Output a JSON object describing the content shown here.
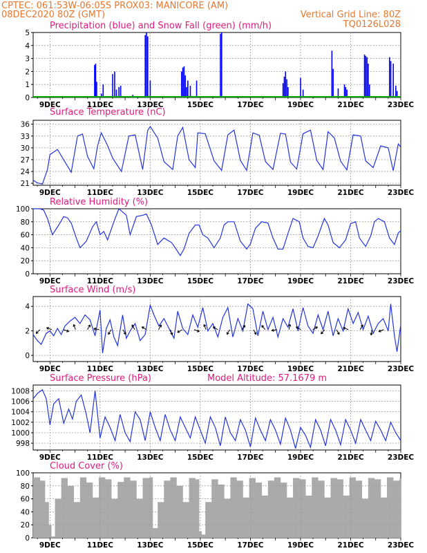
{
  "header": {
    "line1_left": "CPTEC:    061:53W-06:05S    PROX03: MANICORE (AM)",
    "line2_left": "08DEC2020 80Z (GMT)",
    "line2_right": "Vertical Grid Line: 80Z",
    "line3_right": "TQ0126L028"
  },
  "colors": {
    "header": "#e8772e",
    "title": "#e0197d",
    "precip": "#0000ff",
    "snow": "#00aa00",
    "line": "#2233dd",
    "cloud": "#aaaaaa",
    "grid": "#9a9a9a"
  },
  "chart_data": [
    {
      "type": "bar",
      "title": "Precipitation (blue) and Snow Fall (green) (mm/h)",
      "x_tick_labels": [
        "9DEC",
        "11DEC",
        "13DEC",
        "15DEC",
        "17DEC",
        "19DEC",
        "21DEC",
        "23DEC"
      ],
      "x_range_days": [
        8.33,
        23.0
      ],
      "yticks": [
        0,
        1,
        2,
        3,
        4,
        5
      ],
      "ylim": [
        0,
        5
      ],
      "grid": true,
      "series": [
        {
          "name": "Precipitation",
          "x": [
            10.78,
            10.82,
            10.86,
            11.05,
            11.12,
            11.5,
            11.58,
            11.65,
            11.75,
            11.82,
            12.3,
            12.8,
            12.85,
            12.9,
            13.0,
            14.25,
            14.3,
            14.35,
            14.4,
            14.45,
            14.5,
            14.6,
            14.85,
            15.8,
            15.85,
            18.3,
            18.35,
            18.4,
            18.45,
            18.5,
            19.0,
            19.1,
            20.25,
            20.3,
            20.5,
            20.75,
            20.8,
            20.85,
            21.55,
            21.6,
            21.65,
            21.7,
            21.75,
            22.55,
            22.6,
            22.7,
            22.8,
            22.85
          ],
          "values": [
            2.5,
            2.6,
            1.2,
            0.3,
            1.0,
            1.8,
            2.0,
            0.6,
            0.8,
            0.9,
            0.2,
            4.8,
            5.0,
            4.7,
            1.3,
            2.0,
            2.3,
            2.4,
            1.7,
            0.8,
            1.3,
            0.9,
            1.3,
            4.9,
            5.0,
            1.1,
            1.6,
            2.0,
            1.4,
            0.8,
            1.5,
            0.6,
            3.6,
            2.2,
            0.7,
            1.0,
            0.8,
            0.6,
            3.3,
            3.2,
            3.1,
            2.6,
            1.0,
            3.1,
            2.8,
            2.6,
            0.9,
            0.5
          ]
        },
        {
          "name": "Snow Fall",
          "x": [
            8.33,
            23.0
          ],
          "values": [
            0,
            0
          ]
        }
      ]
    },
    {
      "type": "line",
      "title": "Surface Temperature (nC)",
      "x_tick_labels": [
        "9DEC",
        "11DEC",
        "13DEC",
        "15DEC",
        "17DEC",
        "19DEC",
        "21DEC",
        "23DEC"
      ],
      "yticks": [
        21,
        24,
        27,
        30,
        33,
        36
      ],
      "ylim": [
        20.5,
        37.0
      ],
      "grid": true,
      "x": [
        8.33,
        8.5,
        8.7,
        8.9,
        9.0,
        9.3,
        9.6,
        9.85,
        10.1,
        10.3,
        10.5,
        10.75,
        10.9,
        11.05,
        11.3,
        11.5,
        11.85,
        12.15,
        12.4,
        12.7,
        12.9,
        13.0,
        13.3,
        13.55,
        13.9,
        14.1,
        14.3,
        14.55,
        14.8,
        14.9,
        15.2,
        15.55,
        15.85,
        16.1,
        16.35,
        16.6,
        16.85,
        17.1,
        17.35,
        17.6,
        17.9,
        18.2,
        18.4,
        18.6,
        18.85,
        19.1,
        19.4,
        19.65,
        19.9,
        20.1,
        20.35,
        20.6,
        20.85,
        21.1,
        21.4,
        21.6,
        21.9,
        22.2,
        22.5,
        22.7,
        22.9,
        23.0
      ],
      "values": [
        21.8,
        21.1,
        20.8,
        24.5,
        28.3,
        29.6,
        26.4,
        23.8,
        33.0,
        33.5,
        27.8,
        24.7,
        30.5,
        33.8,
        30.6,
        27.4,
        24.0,
        33.0,
        33.3,
        24.5,
        34.4,
        35.4,
        32.5,
        26.5,
        24.5,
        33.0,
        35.2,
        27.0,
        25.0,
        33.8,
        33.6,
        26.7,
        24.3,
        33.3,
        34.5,
        26.8,
        24.3,
        33.8,
        33.2,
        26.5,
        24.5,
        33.7,
        33.5,
        26.4,
        24.6,
        33.6,
        34.5,
        26.8,
        24.5,
        34.1,
        32.5,
        26.6,
        24.4,
        33.3,
        33.0,
        26.7,
        25.0,
        30.5,
        30.0,
        24.2,
        31.0,
        30.2
      ]
    },
    {
      "type": "line",
      "title": "Relative Humidity (%)",
      "x_tick_labels": [
        "9DEC",
        "11DEC",
        "13DEC",
        "15DEC",
        "17DEC",
        "19DEC",
        "21DEC",
        "23DEC"
      ],
      "yticks": [
        0,
        20,
        40,
        60,
        80,
        100
      ],
      "ylim": [
        0,
        100
      ],
      "grid": true,
      "x": [
        8.33,
        8.6,
        8.75,
        8.9,
        9.1,
        9.35,
        9.55,
        9.7,
        9.85,
        10.05,
        10.2,
        10.45,
        10.7,
        10.85,
        11.0,
        11.15,
        11.3,
        11.55,
        11.75,
        11.9,
        12.05,
        12.2,
        12.45,
        12.7,
        12.85,
        13.05,
        13.3,
        13.55,
        13.85,
        14.0,
        14.2,
        14.35,
        14.55,
        14.8,
        14.95,
        15.1,
        15.3,
        15.55,
        15.8,
        15.95,
        16.1,
        16.35,
        16.6,
        16.85,
        17.0,
        17.2,
        17.45,
        17.7,
        17.9,
        18.1,
        18.3,
        18.5,
        18.7,
        18.95,
        19.1,
        19.3,
        19.5,
        19.7,
        19.95,
        20.1,
        20.3,
        20.55,
        20.8,
        21.0,
        21.2,
        21.35,
        21.6,
        21.8,
        21.95,
        22.1,
        22.35,
        22.55,
        22.75,
        22.9,
        23.0
      ],
      "values": [
        100,
        100,
        98,
        85,
        60,
        75,
        88,
        86,
        78,
        55,
        40,
        50,
        72,
        80,
        60,
        65,
        52,
        80,
        100,
        95,
        90,
        60,
        88,
        90,
        92,
        75,
        45,
        55,
        48,
        40,
        28,
        38,
        62,
        75,
        75,
        60,
        55,
        40,
        55,
        75,
        80,
        80,
        50,
        38,
        46,
        70,
        80,
        78,
        55,
        38,
        38,
        62,
        85,
        80,
        55,
        42,
        40,
        58,
        85,
        75,
        48,
        40,
        52,
        77,
        80,
        55,
        42,
        58,
        80,
        85,
        80,
        55,
        45,
        63,
        66
      ]
    },
    {
      "type": "line",
      "title": "Surface Wind (m/s)",
      "x_tick_labels": [
        "9DEC",
        "11DEC",
        "13DEC",
        "15DEC",
        "17DEC",
        "19DEC",
        "21DEC",
        "23DEC"
      ],
      "yticks": [
        0,
        2,
        4
      ],
      "ylim": [
        -0.5,
        4.8
      ],
      "grid": true,
      "x": [
        8.33,
        8.5,
        8.65,
        8.85,
        9.0,
        9.15,
        9.3,
        9.45,
        9.6,
        9.8,
        10.0,
        10.2,
        10.4,
        10.6,
        10.8,
        11.0,
        11.1,
        11.25,
        11.4,
        11.55,
        11.7,
        11.9,
        12.05,
        12.2,
        12.4,
        12.6,
        12.8,
        13.0,
        13.15,
        13.35,
        13.55,
        13.75,
        13.95,
        14.1,
        14.3,
        14.5,
        14.7,
        14.9,
        15.1,
        15.3,
        15.5,
        15.7,
        15.9,
        16.1,
        16.3,
        16.5,
        16.7,
        16.9,
        17.1,
        17.3,
        17.5,
        17.7,
        17.9,
        18.1,
        18.3,
        18.5,
        18.7,
        18.9,
        19.1,
        19.3,
        19.5,
        19.7,
        19.9,
        20.1,
        20.3,
        20.5,
        20.7,
        20.9,
        21.1,
        21.3,
        21.5,
        21.7,
        21.9,
        22.1,
        22.3,
        22.5,
        22.6,
        22.75,
        22.85,
        23.0
      ],
      "values": [
        1.7,
        1.2,
        0.9,
        1.8,
        2.0,
        1.6,
        2.2,
        1.7,
        2.4,
        2.8,
        3.1,
        2.6,
        3.3,
        2.9,
        1.6,
        3.7,
        0.2,
        2.2,
        2.9,
        1.5,
        0.8,
        3.3,
        1.4,
        2.0,
        2.6,
        1.2,
        1.7,
        4.1,
        3.3,
        2.4,
        3.0,
        2.2,
        1.4,
        3.6,
        2.2,
        1.7,
        3.3,
        2.3,
        3.9,
        2.0,
        2.6,
        1.5,
        3.1,
        3.9,
        1.5,
        3.0,
        2.0,
        4.2,
        3.8,
        1.6,
        3.6,
        2.1,
        3.1,
        1.5,
        3.0,
        2.3,
        3.8,
        2.0,
        3.9,
        2.4,
        1.8,
        3.3,
        2.1,
        3.6,
        1.6,
        3.0,
        2.0,
        3.8,
        2.6,
        3.5,
        2.1,
        3.2,
        1.8,
        2.6,
        3.0,
        2.0,
        4.2,
        1.6,
        0.3,
        2.5
      ]
    },
    {
      "type": "line",
      "title": "Surface Pressure (hPa)",
      "annotation": "Model Altitude: 57.1679 m",
      "x_tick_labels": [
        "9DEC",
        "11DEC",
        "13DEC",
        "15DEC",
        "17DEC",
        "19DEC",
        "21DEC",
        "23DEC"
      ],
      "yticks": [
        998,
        1000,
        1002,
        1004,
        1006,
        1008
      ],
      "ylim": [
        996.7,
        1009.1
      ],
      "grid": true,
      "x": [
        8.33,
        8.5,
        8.7,
        8.85,
        9.0,
        9.15,
        9.35,
        9.55,
        9.75,
        9.9,
        10.05,
        10.25,
        10.45,
        10.6,
        10.8,
        11.0,
        11.2,
        11.4,
        11.6,
        11.8,
        12.0,
        12.2,
        12.4,
        12.6,
        12.8,
        13.0,
        13.2,
        13.4,
        13.6,
        13.8,
        14.0,
        14.2,
        14.4,
        14.6,
        14.8,
        15.0,
        15.2,
        15.4,
        15.6,
        15.8,
        16.0,
        16.2,
        16.4,
        16.6,
        16.8,
        17.0,
        17.2,
        17.4,
        17.6,
        17.8,
        18.0,
        18.2,
        18.4,
        18.6,
        18.8,
        19.0,
        19.2,
        19.4,
        19.6,
        19.8,
        20.0,
        20.2,
        20.4,
        20.6,
        20.8,
        21.0,
        21.2,
        21.4,
        21.6,
        21.8,
        22.0,
        22.2,
        22.4,
        22.6,
        22.8,
        23.0
      ],
      "values": [
        1006.5,
        1007.5,
        1008.2,
        1006.5,
        1001.5,
        1005.5,
        1006.5,
        1001.8,
        1004.5,
        1002.6,
        1006.0,
        1007.2,
        1003.5,
        1000.0,
        1008.0,
        999.0,
        1003.0,
        1001.0,
        998.5,
        1003.5,
        1000.0,
        998.3,
        1004.0,
        1002.5,
        998.5,
        1004.0,
        1001.0,
        998.5,
        1003.5,
        1000.5,
        998.5,
        1003.0,
        1001.0,
        999.0,
        1003.0,
        1000.5,
        998.0,
        1003.0,
        1001.0,
        997.5,
        1003.0,
        1000.0,
        998.5,
        1002.5,
        1000.5,
        997.3,
        1002.8,
        1000.5,
        998.5,
        1002.5,
        1000.5,
        997.8,
        1002.8,
        1000.5,
        997.0,
        1001.0,
        999.5,
        997.2,
        1002.5,
        1000.5,
        997.5,
        1002.5,
        1000.5,
        997.7,
        1002.5,
        1000.5,
        998.0,
        1002.5,
        1000.5,
        998.5,
        1002.2,
        1000.5,
        998.5,
        1002.0,
        1000.0,
        998.5
      ]
    },
    {
      "type": "bar",
      "title": "Cloud Cover (%)",
      "x_tick_labels": [
        "9DEC",
        "11DEC",
        "13DEC",
        "15DEC",
        "17DEC",
        "19DEC",
        "21DEC",
        "23DEC"
      ],
      "yticks": [
        0,
        20,
        40,
        60,
        80,
        100
      ],
      "ylim": [
        0,
        100
      ],
      "grid": false,
      "x": [
        8.33,
        8.6,
        8.8,
        8.95,
        9.05,
        9.2,
        9.45,
        9.7,
        9.95,
        10.2,
        10.45,
        10.7,
        10.95,
        11.2,
        11.45,
        11.7,
        11.95,
        12.2,
        12.45,
        12.7,
        12.95,
        13.1,
        13.3,
        13.55,
        13.8,
        14.05,
        14.3,
        14.55,
        14.8,
        14.95,
        15.05,
        15.2,
        15.45,
        15.7,
        15.95,
        16.2,
        16.45,
        16.7,
        16.95,
        17.2,
        17.45,
        17.7,
        17.95,
        18.2,
        18.45,
        18.7,
        18.95,
        19.2,
        19.45,
        19.7,
        19.95,
        20.2,
        20.45,
        20.7,
        20.95,
        21.2,
        21.45,
        21.7,
        21.95,
        22.2,
        22.45,
        22.7,
        22.95
      ],
      "values": [
        93,
        88,
        55,
        20,
        2,
        60,
        92,
        80,
        55,
        93,
        85,
        62,
        93,
        90,
        60,
        86,
        93,
        88,
        60,
        92,
        93,
        15,
        55,
        88,
        93,
        80,
        55,
        92,
        90,
        10,
        5,
        55,
        90,
        82,
        60,
        93,
        88,
        62,
        92,
        85,
        65,
        88,
        93,
        85,
        62,
        92,
        90,
        65,
        93,
        88,
        62,
        92,
        90,
        65,
        93,
        88,
        60,
        92,
        90,
        62,
        93,
        88,
        92
      ]
    }
  ]
}
